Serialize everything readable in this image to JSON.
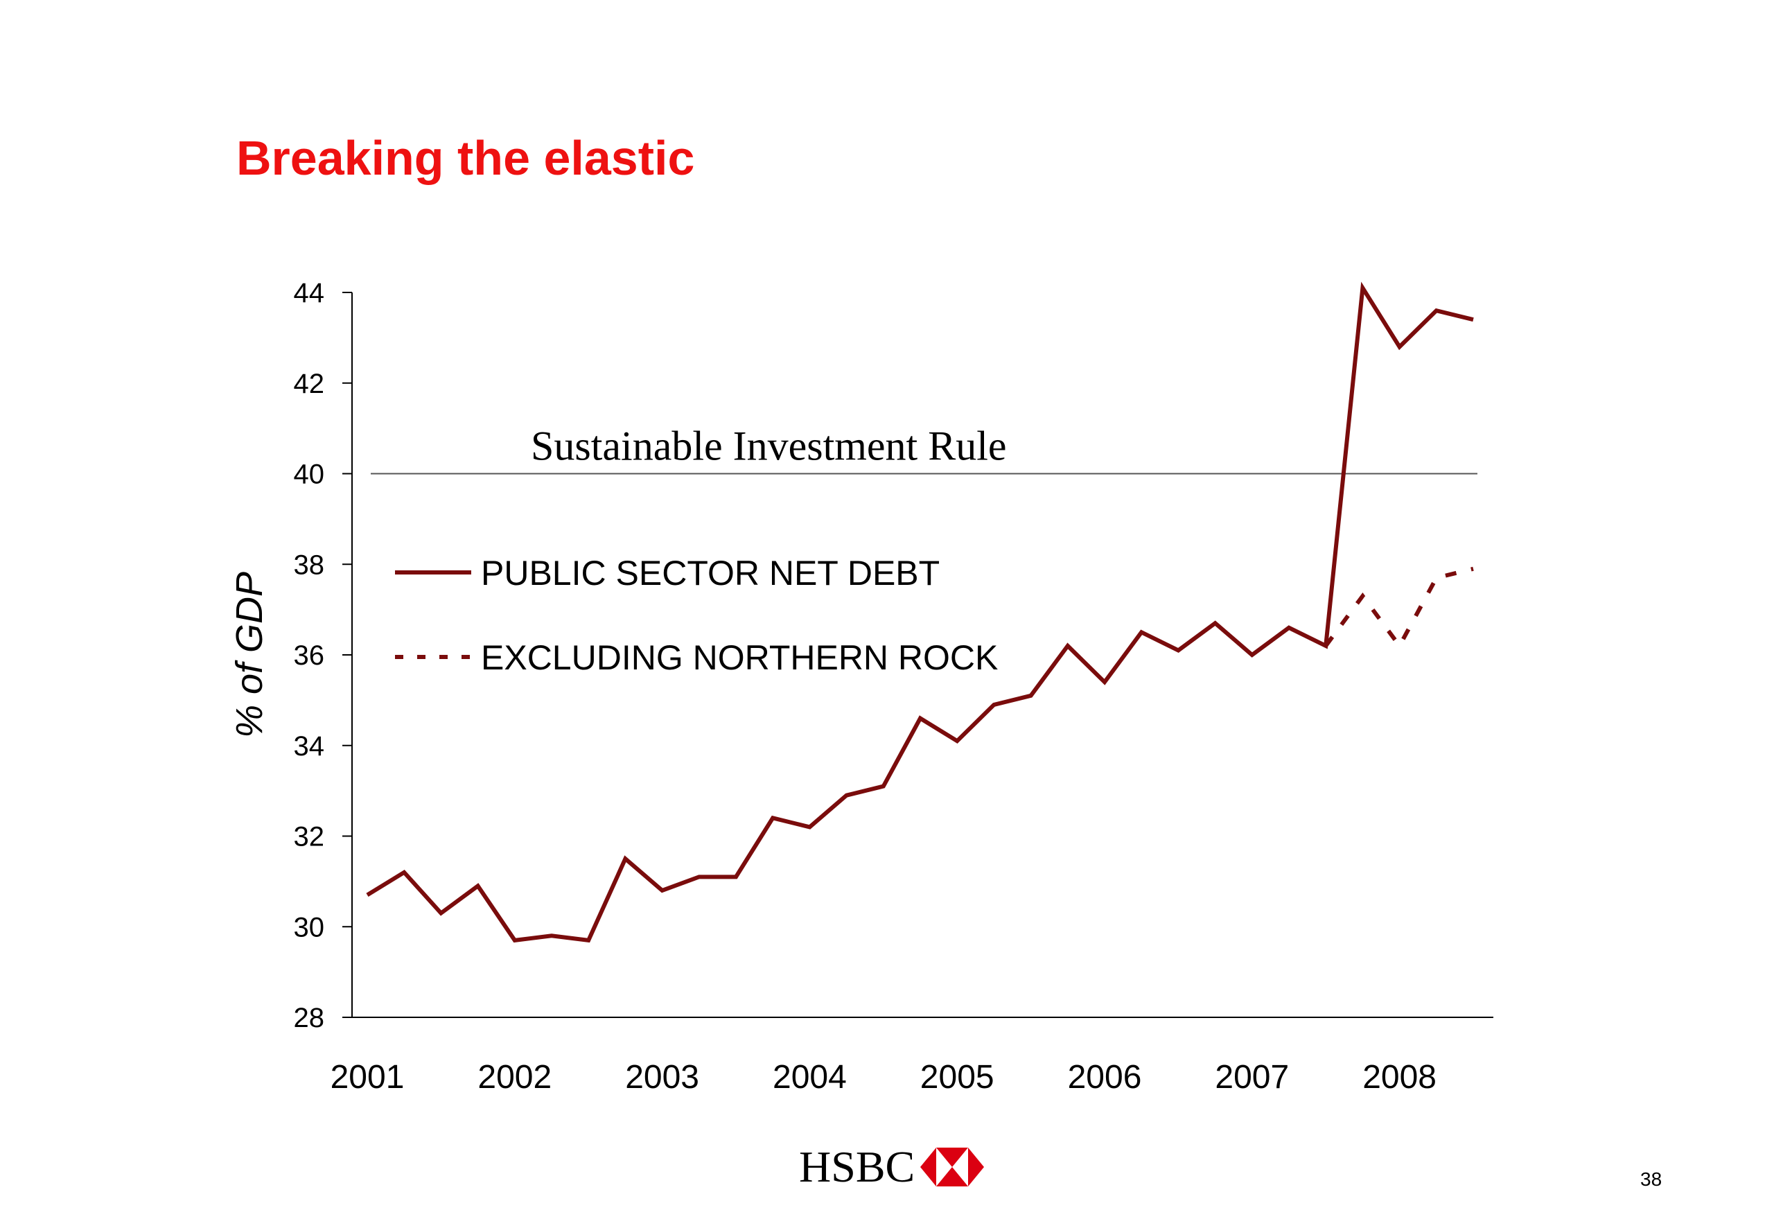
{
  "slide": {
    "title": "Breaking the elastic",
    "page_number": "38",
    "brand": "HSBC",
    "colors": {
      "title": "#ee1111",
      "series": "#7a0c0c",
      "axis": "#000000",
      "rule": "#555555",
      "logo_red": "#db0011"
    }
  },
  "chart_data": {
    "type": "line",
    "title": "",
    "xlabel": "",
    "ylabel": "% of GDP",
    "ylim": [
      28,
      44
    ],
    "xlim": [
      2001,
      2008.75
    ],
    "yticks": [
      28,
      30,
      32,
      34,
      36,
      38,
      40,
      42,
      44
    ],
    "xticks": [
      2001,
      2002,
      2003,
      2004,
      2005,
      2006,
      2007,
      2008
    ],
    "xtick_labels": [
      "2001",
      "2002",
      "2003",
      "2004",
      "2005",
      "2006",
      "2007",
      "2008"
    ],
    "grid": false,
    "legend": "inside, upper-left",
    "reference_line": {
      "y": 40,
      "label": "Sustainable Investment Rule"
    },
    "series": [
      {
        "name": "PUBLIC SECTOR NET DEBT",
        "style": "solid",
        "x": [
          2001,
          2001.25,
          2001.5,
          2001.75,
          2002,
          2002.25,
          2002.5,
          2002.75,
          2003,
          2003.25,
          2003.5,
          2003.75,
          2004,
          2004.25,
          2004.5,
          2004.75,
          2005,
          2005.25,
          2005.5,
          2005.75,
          2006,
          2006.25,
          2006.5,
          2006.75,
          2007,
          2007.25,
          2007.5,
          2007.75,
          2008,
          2008.25,
          2008.5
        ],
        "values": [
          30.7,
          31.2,
          30.3,
          30.9,
          29.7,
          29.8,
          29.7,
          31.5,
          30.8,
          31.1,
          31.1,
          32.4,
          32.2,
          32.9,
          33.1,
          34.6,
          34.1,
          34.9,
          35.1,
          36.2,
          35.4,
          36.5,
          36.1,
          36.7,
          36.0,
          36.6,
          36.2,
          44.1,
          42.8,
          43.6,
          43.4
        ]
      },
      {
        "name": "EXCLUDING NORTHERN ROCK",
        "style": "dashed",
        "x": [
          2007.5,
          2007.75,
          2008,
          2008.25,
          2008.5
        ],
        "values": [
          36.2,
          37.3,
          36.2,
          37.7,
          37.9
        ]
      }
    ]
  }
}
